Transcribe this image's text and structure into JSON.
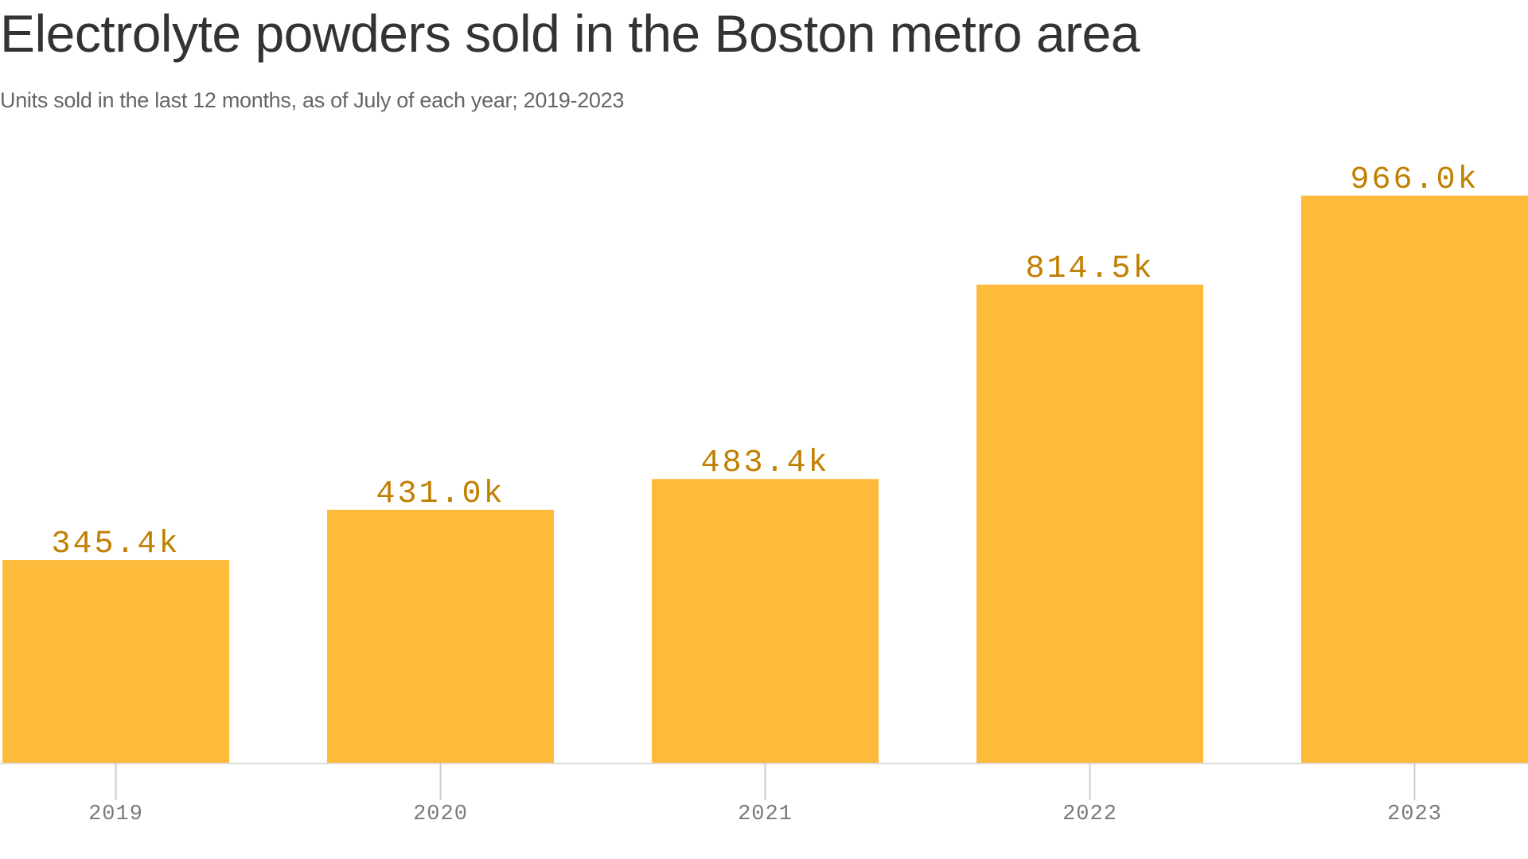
{
  "title": "Electrolyte powders sold in the Boston metro area",
  "subtitle": "Units sold in the last 12 months, as of July of each year; 2019-2023",
  "colors": {
    "bar": "#fdba3b",
    "label": "#c07f00",
    "baseline": "#dddddd",
    "tick": "#cccccc"
  },
  "chart_data": {
    "type": "bar",
    "title": "Electrolyte powders sold in the Boston metro area",
    "subtitle": "Units sold in the last 12 months, as of July of each year; 2019-2023",
    "categories": [
      "2019",
      "2020",
      "2021",
      "2022",
      "2023"
    ],
    "values": [
      345.4,
      431.0,
      483.4,
      814.5,
      966.0
    ],
    "data_labels": [
      "345.4k",
      "431.0k",
      "483.4k",
      "814.5k",
      "966.0k"
    ],
    "xlabel": "",
    "ylabel": "",
    "ylim": [
      0,
      966.0
    ],
    "grid": false,
    "legend": "none"
  }
}
